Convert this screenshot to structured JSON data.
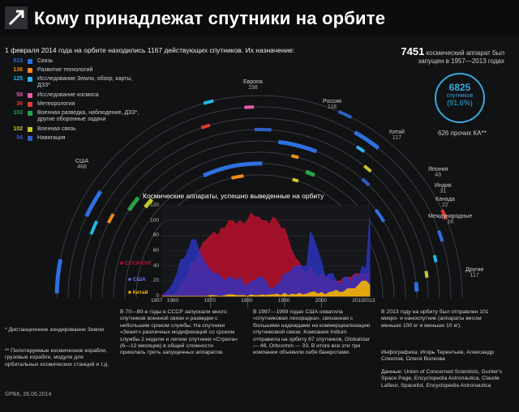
{
  "header": {
    "title": "Кому принадлежат спутники на орбите"
  },
  "intro": "1 февраля 2014 года на орбите находились 1167 действующих спутников. Их назначение:",
  "legend": [
    {
      "n": "513",
      "label": "Связь",
      "color": "#2f6fe0"
    },
    {
      "n": "136",
      "label": "Развитие технологий",
      "color": "#f08a18"
    },
    {
      "n": "125",
      "label": "Исследование Земли, обзор, карты, ДЗЗ*",
      "color": "#25b6e6"
    },
    {
      "n": "58",
      "label": "Исследование космоса",
      "color": "#e85aa8"
    },
    {
      "n": "36",
      "label": "Метеорология",
      "color": "#e23a2e"
    },
    {
      "n": "103",
      "label": "Военная разведка, наблюдение, ДЗЗ*, другие оборонные задачи",
      "color": "#27a247"
    },
    {
      "n": "102",
      "label": "Военная связь",
      "color": "#c8c628"
    },
    {
      "n": "94",
      "label": "Навигация",
      "color": "#2f5fc8"
    }
  ],
  "totals": {
    "count": "7451",
    "count_text": "космический аппарат был запущен в 1957—2013 годах",
    "active": "6825",
    "active_word": "спутников",
    "active_pct": "(91,6%)",
    "other": "626 прочих КА**"
  },
  "countries": [
    {
      "name": "США",
      "value": "488"
    },
    {
      "name": "Европа",
      "value": "198"
    },
    {
      "name": "Россия",
      "value": "118"
    },
    {
      "name": "Китай",
      "value": "117"
    },
    {
      "name": "Япония",
      "value": "43"
    },
    {
      "name": "Индия",
      "value": "31"
    },
    {
      "name": "Канада",
      "value": "22"
    },
    {
      "name": "Международные",
      "value": "18"
    },
    {
      "name": "Другие",
      "value": "117"
    }
  ],
  "chart_data": {
    "type": "area",
    "title": "Космические аппараты, успешно выведенные на орбиту",
    "ylim": [
      0,
      120
    ],
    "yticks": [
      0,
      20,
      40,
      60,
      80,
      100,
      120
    ],
    "xlim": [
      1957,
      2013
    ],
    "xticks": [
      "1957",
      "1960",
      "1970",
      "1980",
      "1990",
      "2000",
      "2010",
      "2013"
    ],
    "x": [
      1957,
      1958,
      1959,
      1960,
      1961,
      1962,
      1963,
      1964,
      1965,
      1966,
      1967,
      1968,
      1969,
      1970,
      1971,
      1972,
      1973,
      1974,
      1975,
      1976,
      1977,
      1978,
      1979,
      1980,
      1981,
      1982,
      1983,
      1984,
      1985,
      1986,
      1987,
      1988,
      1989,
      1990,
      1991,
      1992,
      1993,
      1994,
      1995,
      1996,
      1997,
      1998,
      1999,
      2000,
      2001,
      2002,
      2003,
      2004,
      2005,
      2006,
      2007,
      2008,
      2009,
      2010,
      2011,
      2012,
      2013
    ],
    "series": [
      {
        "name": "СССР-СНГ",
        "color": "#c8102e",
        "values": [
          2,
          1,
          3,
          2,
          5,
          15,
          20,
          30,
          45,
          45,
          60,
          70,
          75,
          80,
          85,
          80,
          90,
          90,
          100,
          100,
          95,
          100,
          95,
          100,
          110,
          105,
          105,
          100,
          100,
          95,
          105,
          100,
          90,
          90,
          75,
          60,
          50,
          45,
          35,
          30,
          40,
          30,
          25,
          30,
          25,
          25,
          20,
          20,
          20,
          25,
          25,
          25,
          30,
          30,
          30,
          30,
          30
        ]
      },
      {
        "name": "США",
        "color": "#2c34c8",
        "values": [
          0,
          5,
          10,
          18,
          30,
          48,
          50,
          60,
          75,
          75,
          60,
          50,
          40,
          35,
          30,
          30,
          25,
          20,
          25,
          25,
          20,
          25,
          15,
          15,
          20,
          20,
          25,
          25,
          20,
          10,
          10,
          15,
          20,
          30,
          30,
          35,
          40,
          40,
          40,
          40,
          85,
          75,
          60,
          45,
          25,
          30,
          30,
          20,
          15,
          25,
          25,
          20,
          30,
          25,
          40,
          35,
          105
        ]
      },
      {
        "name": "Китай",
        "color": "#f3b400",
        "values": [
          0,
          0,
          0,
          0,
          0,
          0,
          0,
          0,
          0,
          0,
          0,
          0,
          0,
          1,
          1,
          0,
          0,
          1,
          2,
          2,
          1,
          1,
          1,
          0,
          2,
          1,
          1,
          2,
          1,
          2,
          2,
          3,
          1,
          4,
          1,
          3,
          2,
          4,
          2,
          3,
          5,
          6,
          3,
          5,
          2,
          5,
          6,
          8,
          5,
          6,
          10,
          10,
          10,
          15,
          20,
          20,
          15
        ]
      }
    ]
  },
  "notes": {
    "ussr": "В 70—80-е годы в СССР запускали много спутников военной связи и разведки с небольшим сроком службы. На спутники «Зенит» различных модификаций со сроком службы 2 недели и легкие спутники «Стрела» (6—12 месяцев) в общей сложности пришлась треть запущенных аппаратов.",
    "usa": "В 1997—1999 годах США охватила «спутниковая лихорадка», связанная с большими надеждами на коммерциализацию спутниковой связи. Компания Iridium отправила на орбиту 87 спутников, Globalstar — 48, Orbcomm — 33. В итоге все эти три компании объявили себя банкротами.",
    "micro": "В 2013 году на орбиту был отправлен 101 микро- и наноспутник (аппараты весом меньше 100 кг и меньше 10 кг).",
    "star1": "*  Дистанционное зондирование Земли",
    "star2": "** Пилотируемые космические корабли, грузовые корабли, модули для орбитальных космических станций и т.д.",
    "credits": "Инфографика: Игорь Терентьев, Александр Соколов, Олеся Волкова",
    "sources": "Данные: Union of Concerned Scientists, Gunter's Space Page, Encyclopedia Astronautica, Claude Lafleur, Spacelist, Encyclopedia Astronautica",
    "copyright": "©РБК, 26.06.2014"
  }
}
